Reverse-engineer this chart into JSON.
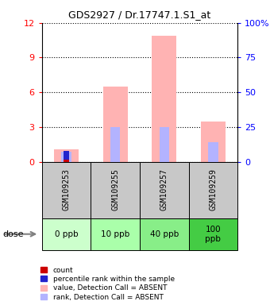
{
  "title": "GDS2927 / Dr.17747.1.S1_at",
  "samples": [
    "GSM109253",
    "GSM109255",
    "GSM109257",
    "GSM109259"
  ],
  "doses": [
    "0 ppb",
    "10 ppb",
    "40 ppb",
    "100\nppb"
  ],
  "dose_colors": [
    "#ccffcc",
    "#aaffaa",
    "#88ee88",
    "#44cc44"
  ],
  "ylim_left": [
    0,
    12
  ],
  "ylim_right": [
    0,
    100
  ],
  "yticks_left": [
    0,
    3,
    6,
    9,
    12
  ],
  "yticks_right": [
    0,
    25,
    50,
    75,
    100
  ],
  "value_absent": [
    1.1,
    6.5,
    10.9,
    3.5
  ],
  "rank_absent_pct": [
    7.0,
    25.0,
    25.0,
    14.0
  ],
  "count_vals": [
    0.15,
    0,
    0,
    0
  ],
  "rank_present_pct": [
    7.5,
    0,
    0,
    0
  ],
  "bar_width": 0.5,
  "absent_color": "#ffb3b3",
  "absent_rank_color": "#b3b3ff",
  "count_color": "#cc0000",
  "rank_color": "#2222cc",
  "legend_labels": [
    "count",
    "percentile rank within the sample",
    "value, Detection Call = ABSENT",
    "rank, Detection Call = ABSENT"
  ],
  "legend_colors": [
    "#cc0000",
    "#2222cc",
    "#ffb3b3",
    "#b3b3ff"
  ]
}
